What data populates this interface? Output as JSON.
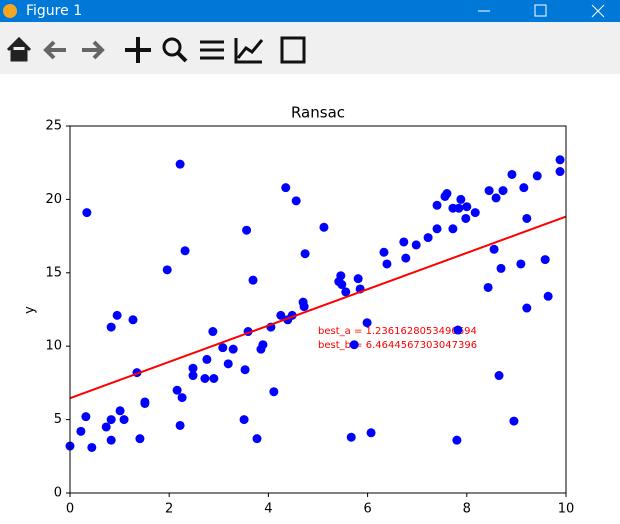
{
  "window": {
    "title": "Figure 1"
  },
  "chart_data": {
    "type": "scatter",
    "title": "Ransac",
    "y_label": "y",
    "xlim": [
      0,
      10
    ],
    "ylim": [
      0,
      25
    ],
    "xticks": [
      0,
      2,
      4,
      6,
      8,
      10
    ],
    "yticks": [
      0,
      5,
      10,
      15,
      20,
      25
    ],
    "annotations": [
      "best_a = 1.2361628053490694",
      "best_b = 6.4644567303047396"
    ],
    "annotation_color": "#ff0000",
    "series": [
      {
        "type": "scatter",
        "color": "#0000ff",
        "x": [
          0,
          0.22,
          0.32,
          0.34,
          0.44,
          0.73,
          0.83,
          0.83,
          0.83,
          0.95,
          1.01,
          1.09,
          1.27,
          1.35,
          1.41,
          1.51,
          1.51,
          1.96,
          2.16,
          2.22,
          2.22,
          2.26,
          2.32,
          2.48,
          2.48,
          2.72,
          2.76,
          2.88,
          2.9,
          3.08,
          3.19,
          3.29,
          3.51,
          3.53,
          3.56,
          3.59,
          3.69,
          3.77,
          3.85,
          3.89,
          4.05,
          4.11,
          4.25,
          4.35,
          4.39,
          4.48,
          4.56,
          4.7,
          4.72,
          4.74,
          5.12,
          5.42,
          5.46,
          5.48,
          5.56,
          5.67,
          5.73,
          5.81,
          5.85,
          5.99,
          6.07,
          6.33,
          6.39,
          6.73,
          6.77,
          6.98,
          7.22,
          7.4,
          7.4,
          7.56,
          7.6,
          7.72,
          7.72,
          7.8,
          7.82,
          7.84,
          7.88,
          7.98,
          8.0,
          8.17,
          8.43,
          8.45,
          8.55,
          8.59,
          8.65,
          8.69,
          8.73,
          8.91,
          8.95,
          9.09,
          9.15,
          9.21,
          9.21,
          9.42,
          9.58,
          9.64,
          9.88,
          9.88
        ],
        "values": [
          3.2,
          4.2,
          5.2,
          19.1,
          3.1,
          4.5,
          5.0,
          3.6,
          11.3,
          12.1,
          5.6,
          5.0,
          11.8,
          8.2,
          3.7,
          6.1,
          6.2,
          15.2,
          7.0,
          22.4,
          4.6,
          6.5,
          16.5,
          8.0,
          8.5,
          7.8,
          9.1,
          11.0,
          7.8,
          9.9,
          8.8,
          9.8,
          5.0,
          8.4,
          17.9,
          11.0,
          14.5,
          3.7,
          9.8,
          10.1,
          11.3,
          6.9,
          12.1,
          20.8,
          11.8,
          12.1,
          19.9,
          13.0,
          12.7,
          16.3,
          18.1,
          14.4,
          14.8,
          14.2,
          13.7,
          3.8,
          10.1,
          14.6,
          13.9,
          11.6,
          4.1,
          16.4,
          15.6,
          17.1,
          16.0,
          16.9,
          17.4,
          18.0,
          19.6,
          20.2,
          20.4,
          19.4,
          18.0,
          3.6,
          11.1,
          19.4,
          20.0,
          18.7,
          19.5,
          19.1,
          14.0,
          20.6,
          16.6,
          20.1,
          8.0,
          15.3,
          20.6,
          21.7,
          4.9,
          15.6,
          20.8,
          12.6,
          18.7,
          21.6,
          15.9,
          13.4,
          22.7,
          21.9
        ]
      },
      {
        "type": "line",
        "color": "#ff0000",
        "x": [
          0,
          10
        ],
        "values": [
          6.46,
          18.83
        ]
      }
    ]
  }
}
